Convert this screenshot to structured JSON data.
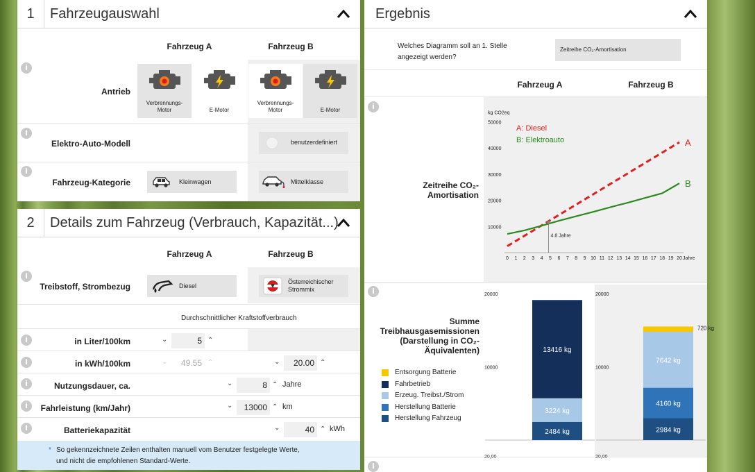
{
  "panel1": {
    "number": "1",
    "title": "Fahrzeugauswahl"
  },
  "panel2": {
    "number": "2",
    "title": "Details zum Fahrzeug (Verbrauch, Kapazität...)"
  },
  "result": {
    "title": "Ergebnis"
  },
  "columns": {
    "a": "Fahrzeug A",
    "b": "Fahrzeug B"
  },
  "info_glyph": "i",
  "vehicle": {
    "antrieb_label": "Antrieb",
    "tiles": {
      "combustion": "Verbrennungs-Motor",
      "electric": "E-Motor"
    },
    "ev_model_label": "Elektro-Auto-Modell",
    "ev_model_b": "benutzerdefiniert",
    "category_label": "Fahrzeug-Kategorie",
    "category_a": "Kleinwagen",
    "category_b": "Mittelklasse"
  },
  "details": {
    "fuel_label": "Treibstoff, Strombezug",
    "fuel_a": "Diesel",
    "fuel_b": "Österreichischer Strommix",
    "consumption_header": "Durchschnittlicher Kraftstoffverbrauch",
    "liter_label": "in Liter/100km",
    "liter_a": "5",
    "kwh_label": "in kWh/100km",
    "kwh_a": "49.55",
    "kwh_b": "20.00",
    "duration_label": "Nutzungsdauer, ca.",
    "duration": "8",
    "duration_unit": "Jahre",
    "mileage_label": "Fahrleistung (km/Jahr)",
    "mileage": "13000",
    "mileage_unit": "km",
    "battery_label": "Batteriekapazität",
    "battery": "40",
    "battery_unit": "kWh",
    "note_star": "*",
    "note_line1": "So gekennzeichnete Zeilen enthalten manuell vom Benutzer festgelegte Werte,",
    "note_line2": "und nicht die empfohlenen Standard-Werte."
  },
  "diagram_select": {
    "question_line1": "Welches Diagramm soll an 1. Stelle",
    "question_line2": "angezeigt werden?",
    "selected": "Zeitreihe CO₂-Amortisation"
  },
  "timeseries": {
    "label_line1": "Zeitreihe CO₂-",
    "label_line2": "Amortisation"
  },
  "emissions": {
    "label_line1": "Summe",
    "label_line2": "Treibhausgasemissionen",
    "label_line3": "(Darstellung in CO₂-",
    "label_line4": "Äquivalenten)"
  },
  "icons": {
    "chevron": "chevron-up-icon",
    "combustion": "combustion-engine-icon",
    "electric": "electric-engine-icon",
    "car": "car-icon",
    "ecar": "electric-car-icon",
    "fuel": "fuel-nozzle-icon",
    "grid": "power-mix-icon"
  },
  "colors": {
    "diesel": "#e02020",
    "electric": "#2b8a1e",
    "entsorgung": "#f5c800",
    "fahrbetrieb": "#14305a",
    "erzeugung": "#a8c8e8",
    "herstellung_batterie": "#2f73b8",
    "herstellung_fahrzeug": "#1f4e82",
    "note_bg": "#d6eafa"
  },
  "chart_data": [
    {
      "type": "line",
      "ylabel": "kg CO2eq",
      "xlabel": "Jahre",
      "x": [
        0,
        20
      ],
      "xticks": [
        0,
        1,
        2,
        3,
        4,
        5,
        6,
        7,
        8,
        9,
        10,
        11,
        12,
        13,
        14,
        15,
        16,
        17,
        18,
        19,
        20
      ],
      "yticks": [
        10000,
        20000,
        30000,
        40000,
        50000
      ],
      "ylim": [
        0,
        52000
      ],
      "xlim": [
        0,
        20
      ],
      "series": [
        {
          "name": "A: Diesel",
          "end_label": "A",
          "x": [
            0,
            20
          ],
          "y": [
            2484,
            42200
          ],
          "style": "dashed"
        },
        {
          "name": "B: Elektroauto",
          "end_label": "B",
          "x": [
            0,
            2,
            4,
            6,
            8,
            10,
            12,
            14,
            16,
            18,
            20
          ],
          "y": [
            7150,
            8500,
            10300,
            12200,
            13900,
            15600,
            17400,
            19100,
            20900,
            22700,
            26500
          ],
          "style": "solid"
        }
      ],
      "annotation": {
        "x": 4.8,
        "y": 11600,
        "text": "4.8 Jahre"
      }
    },
    {
      "type": "bar",
      "stacked": true,
      "categories": [
        "Fahrzeug A",
        "Fahrzeug B"
      ],
      "ylim": [
        0,
        20000
      ],
      "yticks": [
        10000,
        20000
      ],
      "ytick_labels": [
        "10000",
        "20000"
      ],
      "series": [
        {
          "name": "Herstellung Fahrzeug",
          "values": [
            2484,
            2984
          ],
          "labels": [
            "2484 kg",
            "2984 kg"
          ]
        },
        {
          "name": "Herstellung Batterie",
          "values": [
            0,
            4160
          ],
          "labels": [
            "",
            "4160 kg"
          ]
        },
        {
          "name": "Erzeug. Treibst./Strom",
          "values": [
            3224,
            7642
          ],
          "labels": [
            "3224 kg",
            "7642 kg"
          ]
        },
        {
          "name": "Fahrbetrieb",
          "values": [
            13416,
            0
          ],
          "labels": [
            "13416 kg",
            ""
          ]
        },
        {
          "name": "Entsorgung Batterie",
          "values": [
            0,
            720
          ],
          "labels": [
            "",
            "720 kg"
          ]
        }
      ],
      "next_chart_ytick": "20,00"
    }
  ]
}
